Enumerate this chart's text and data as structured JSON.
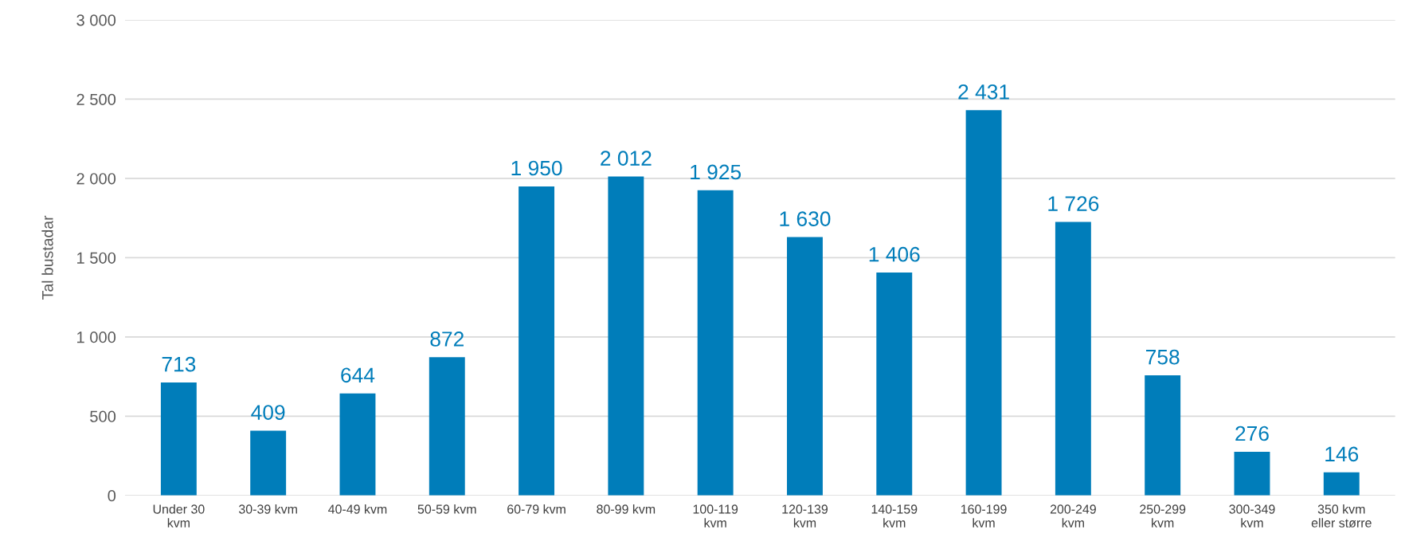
{
  "chart_data": {
    "type": "bar",
    "ylabel": "Tal bustadar",
    "categories": [
      "Under 30\nkvm",
      "30-39 kvm",
      "40-49 kvm",
      "50-59 kvm",
      "60-79 kvm",
      "80-99 kvm",
      "100-119\nkvm",
      "120-139\nkvm",
      "140-159\nkvm",
      "160-199\nkvm",
      "200-249\nkvm",
      "250-299\nkvm",
      "300-349\nkvm",
      "350 kvm\neller større"
    ],
    "values": [
      713,
      409,
      644,
      872,
      1950,
      2012,
      1925,
      1630,
      1406,
      2431,
      1726,
      758,
      276,
      146
    ],
    "value_labels": [
      "713",
      "409",
      "644",
      "872",
      "1 950",
      "2 012",
      "1 925",
      "1 630",
      "1 406",
      "2 431",
      "1 726",
      "758",
      "276",
      "146"
    ],
    "color": "#007dba",
    "ylim": [
      0,
      3000
    ],
    "yticks": [
      0,
      500,
      {
        "value": 1000,
        "label": "1 000"
      },
      {
        "value": 1500,
        "label": "1 500"
      },
      {
        "value": 2000,
        "label": "2 000"
      },
      {
        "value": 2500,
        "label": "2 500"
      },
      {
        "value": 3000,
        "label": "3 000"
      }
    ],
    "grid": "y",
    "legend": false
  }
}
